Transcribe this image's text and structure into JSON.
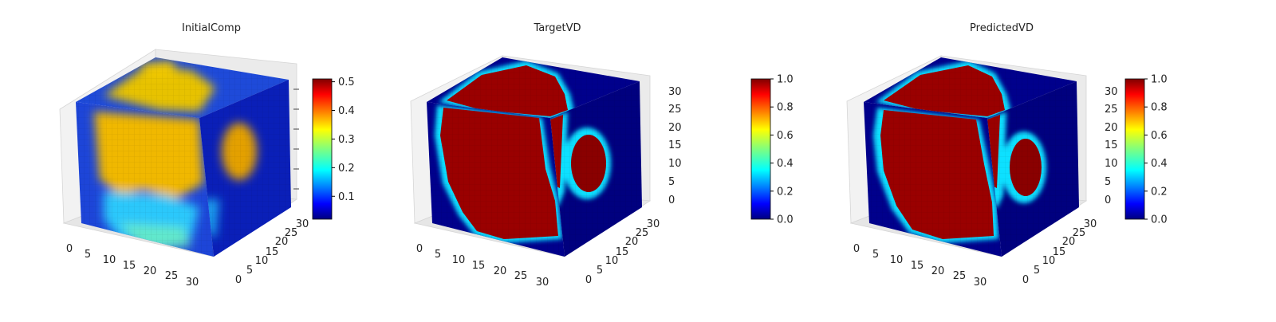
{
  "chart_data": [
    {
      "type": "heatmap",
      "title": "InitialComp",
      "xticks": [
        "0",
        "5",
        "10",
        "15",
        "20",
        "25",
        "30"
      ],
      "yticks": [
        "0",
        "5",
        "10",
        "15",
        "20",
        "25",
        "30"
      ],
      "zticks": [],
      "colorbar": {
        "min": 0.02,
        "max": 0.51,
        "ticks": [
          "0.1",
          "0.2",
          "0.3",
          "0.4",
          "0.5"
        ],
        "tick_values": [
          0.1,
          0.2,
          0.3,
          0.4,
          0.5
        ]
      },
      "colormap": "jet",
      "surface_levels": {
        "front": 0.38,
        "top": 0.32,
        "side": 0.07
      }
    },
    {
      "type": "heatmap",
      "title": "TargetVD",
      "xticks": [
        "0",
        "5",
        "10",
        "15",
        "20",
        "25",
        "30"
      ],
      "yticks": [
        "0",
        "5",
        "10",
        "15",
        "20",
        "25",
        "30"
      ],
      "zticks": [
        "0",
        "5",
        "10",
        "15",
        "20",
        "25",
        "30"
      ],
      "colorbar": {
        "min": 0.0,
        "max": 1.0,
        "ticks": [
          "0.0",
          "0.2",
          "0.4",
          "0.6",
          "0.8",
          "1.0"
        ],
        "tick_values": [
          0.0,
          0.2,
          0.4,
          0.6,
          0.8,
          1.0
        ]
      },
      "colormap": "jet",
      "surface_levels": {
        "front": 1.0,
        "top": 1.0,
        "side": 0.0
      }
    },
    {
      "type": "heatmap",
      "title": "PredictedVD",
      "xticks": [
        "0",
        "5",
        "10",
        "15",
        "20",
        "25",
        "30"
      ],
      "yticks": [
        "0",
        "5",
        "10",
        "15",
        "20",
        "25",
        "30"
      ],
      "zticks": [
        "0",
        "5",
        "10",
        "15",
        "20",
        "25",
        "30"
      ],
      "colorbar": {
        "min": 0.0,
        "max": 1.0,
        "ticks": [
          "0.0",
          "0.2",
          "0.4",
          "0.6",
          "0.8",
          "1.0"
        ],
        "tick_values": [
          0.0,
          0.2,
          0.4,
          0.6,
          0.8,
          1.0
        ]
      },
      "colormap": "jet",
      "surface_levels": {
        "front": 1.0,
        "top": 1.0,
        "side": 0.0
      }
    }
  ]
}
